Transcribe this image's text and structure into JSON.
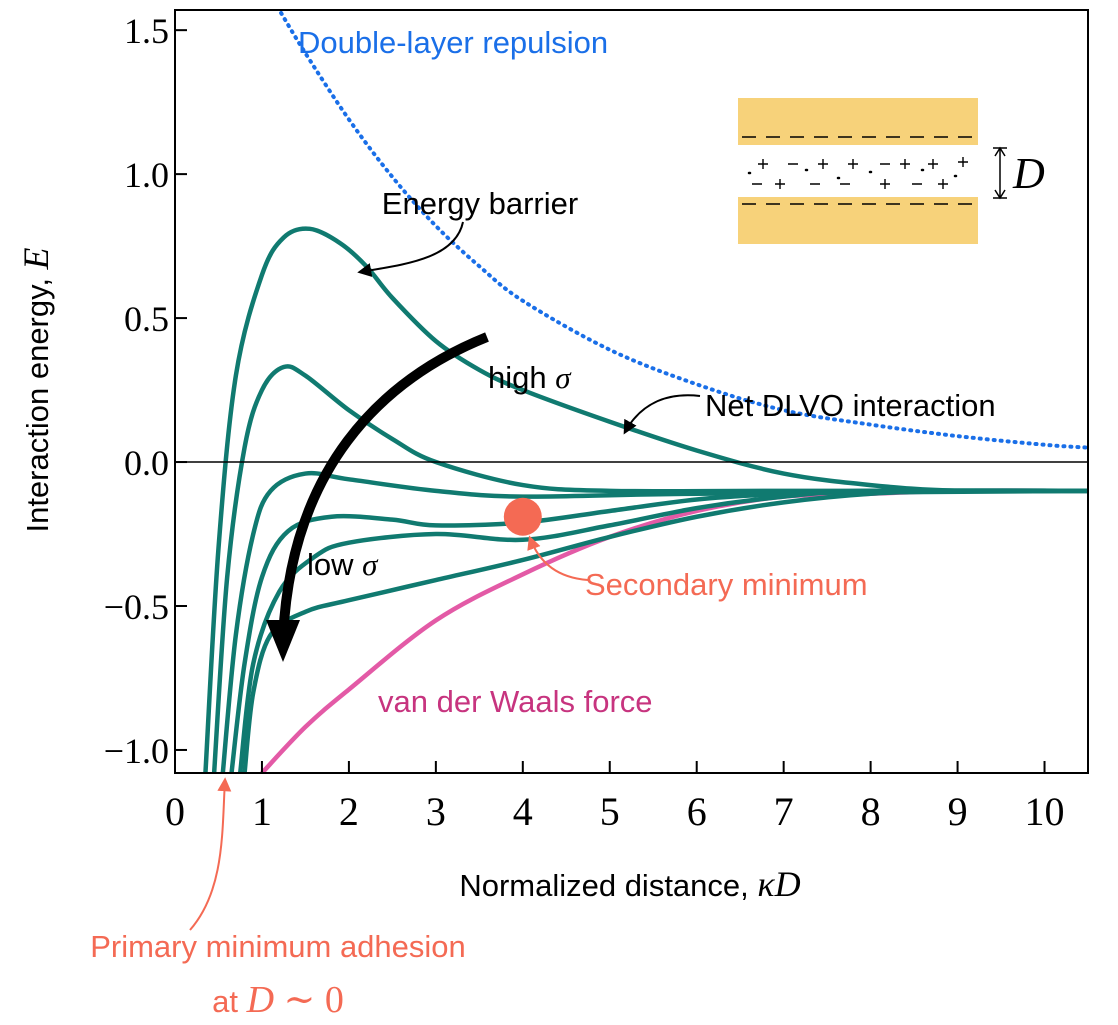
{
  "chart_data": {
    "type": "line",
    "xlim": [
      0,
      10.5
    ],
    "ylim": [
      -1.08,
      1.57
    ],
    "xticks": [
      0,
      1,
      2,
      3,
      4,
      5,
      6,
      7,
      8,
      9,
      10
    ],
    "yticks": [
      {
        "value": 1.5,
        "label": "1.5"
      },
      {
        "value": 1.0,
        "label": "1.0"
      },
      {
        "value": 0.5,
        "label": "0.5"
      },
      {
        "value": 0.0,
        "label": "0.0"
      },
      {
        "value": -0.5,
        "label": "−0.5"
      },
      {
        "value": -1.0,
        "label": "−1.0"
      }
    ],
    "zero_line": true,
    "x_label": [
      "Normalized distance, ",
      "κD"
    ],
    "y_label": [
      "Interaction energy, ",
      "E"
    ],
    "series": [
      {
        "name": "Double-layer repulsion",
        "color": "#1a6fe8",
        "style": "dotted",
        "x": [
          1.18,
          1.5,
          2,
          2.5,
          3,
          3.5,
          4,
          5,
          6,
          7,
          8,
          9,
          10,
          10.5
        ],
        "values": [
          1.58,
          1.42,
          1.19,
          0.99,
          0.82,
          0.68,
          0.56,
          0.39,
          0.27,
          0.18,
          0.13,
          0.09,
          0.06,
          0.05
        ]
      },
      {
        "name": "van der Waals force",
        "color": "#e35aa6",
        "style": "solid",
        "x": [
          1,
          1.5,
          2,
          3,
          4,
          5,
          6,
          7,
          8,
          9,
          10.5
        ],
        "values": [
          -1.08,
          -0.92,
          -0.79,
          -0.55,
          -0.39,
          -0.26,
          -0.17,
          -0.12,
          -0.11,
          -0.1,
          -0.1
        ]
      },
      {
        "name": "Net DLVO interaction",
        "color": "#107a70",
        "style": "solid",
        "x": [
          0.35,
          0.5,
          0.7,
          1,
          1.25,
          1.55,
          1.9,
          2.2,
          2.5,
          3,
          3.5,
          4,
          5,
          6,
          7,
          8,
          9,
          10.5
        ],
        "values": [
          -1.08,
          -0.3,
          0.3,
          0.65,
          0.78,
          0.81,
          0.76,
          0.68,
          0.57,
          0.42,
          0.32,
          0.25,
          0.14,
          0.04,
          -0.04,
          -0.08,
          -0.1,
          -0.1
        ]
      },
      {
        "color": "#107a70",
        "style": "solid",
        "x": [
          0.45,
          0.6,
          0.8,
          1,
          1.25,
          1.5,
          2,
          2.5,
          3,
          4,
          5,
          7,
          10.5
        ],
        "values": [
          -1.08,
          -0.4,
          0.05,
          0.25,
          0.33,
          0.3,
          0.18,
          0.08,
          0.0,
          -0.08,
          -0.1,
          -0.1,
          -0.1
        ]
      },
      {
        "color": "#107a70",
        "style": "solid",
        "x": [
          0.55,
          0.7,
          0.9,
          1.1,
          1.5,
          2,
          3,
          4,
          6,
          10.5
        ],
        "values": [
          -1.08,
          -0.6,
          -0.25,
          -0.1,
          -0.04,
          -0.06,
          -0.1,
          -0.12,
          -0.11,
          -0.1
        ]
      },
      {
        "color": "#107a70",
        "style": "solid",
        "x": [
          0.65,
          0.8,
          1,
          1.3,
          1.8,
          2.5,
          3,
          4,
          5,
          6,
          7,
          8,
          10.5
        ],
        "values": [
          -1.08,
          -0.7,
          -0.4,
          -0.24,
          -0.19,
          -0.2,
          -0.22,
          -0.21,
          -0.17,
          -0.13,
          -0.11,
          -0.1,
          -0.1
        ]
      },
      {
        "color": "#107a70",
        "style": "solid",
        "x": [
          0.75,
          0.9,
          1.2,
          1.6,
          2,
          3,
          4,
          5,
          6,
          7,
          8,
          10.5
        ],
        "values": [
          -1.08,
          -0.7,
          -0.45,
          -0.33,
          -0.28,
          -0.25,
          -0.27,
          -0.22,
          -0.16,
          -0.12,
          -0.1,
          -0.1
        ]
      },
      {
        "color": "#107a70",
        "style": "solid",
        "x": [
          0.8,
          0.9,
          1.1,
          1.5,
          2,
          3,
          4,
          5,
          6,
          7,
          8,
          9,
          10.5
        ],
        "values": [
          -1.08,
          -0.8,
          -0.6,
          -0.52,
          -0.48,
          -0.41,
          -0.34,
          -0.26,
          -0.19,
          -0.14,
          -0.11,
          -0.1,
          -0.1
        ]
      }
    ],
    "annotations": {
      "energy_barrier": "Energy barrier",
      "high": [
        "high ",
        "σ"
      ],
      "low": [
        "low ",
        "σ"
      ],
      "secondary_minimum": {
        "text": "Secondary minimum",
        "x": 4,
        "y": -0.19,
        "color": "#f46a54"
      },
      "primary_minimum": {
        "line1": "Primary minimum adhesion",
        "line2": [
          "at ",
          "D",
          " ∼ 0"
        ],
        "color": "#f46a54"
      },
      "inset_label": "D"
    }
  }
}
